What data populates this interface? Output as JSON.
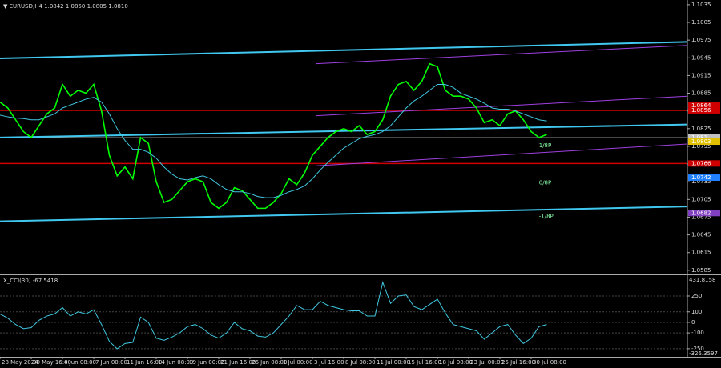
{
  "chart_data": [
    {
      "type": "line",
      "title": "▼ EURUSD,H4  1.0842 1.0850 1.0805 1.0810",
      "xlim": [
        0,
        88
      ],
      "ylim": [
        1.0578,
        1.1043
      ],
      "yticks": [
        1.1035,
        1.1005,
        1.0975,
        1.0945,
        1.0915,
        1.0885,
        1.0855,
        1.0825,
        1.0795,
        1.0765,
        1.0735,
        1.0705,
        1.0675,
        1.0645,
        1.0615,
        1.0585
      ],
      "xticks": [
        {
          "value": 0,
          "label": "28 May 2024"
        },
        {
          "value": 4,
          "label": "30 May 16:00"
        },
        {
          "value": 8,
          "label": "4 Jun 08:00"
        },
        {
          "value": 12,
          "label": "7 Jun 00:00"
        },
        {
          "value": 16,
          "label": "11 Jun 16:00"
        },
        {
          "value": 20,
          "label": "14 Jun 08:00"
        },
        {
          "value": 24,
          "label": "19 Jun 00:00"
        },
        {
          "value": 28,
          "label": "21 Jun 16:00"
        },
        {
          "value": 32,
          "label": "26 Jun 08:00"
        },
        {
          "value": 36,
          "label": "1 Jul 00:00"
        },
        {
          "value": 40,
          "label": "3 Jul 16:00"
        },
        {
          "value": 44,
          "label": "8 Jul 08:00"
        },
        {
          "value": 48,
          "label": "11 Jul 00:00"
        },
        {
          "value": 52,
          "label": "15 Jul 16:00"
        },
        {
          "value": 56,
          "label": "18 Jul 08:00"
        },
        {
          "value": 60,
          "label": "23 Jul 00:00"
        },
        {
          "value": 64,
          "label": "25 Jul 16:00"
        },
        {
          "value": 68,
          "label": "30 Jul 08:00"
        }
      ],
      "series": [
        {
          "name": "EURUSD",
          "color": "#00ff00",
          "values": [
            1.087,
            1.086,
            1.084,
            1.082,
            1.081,
            1.083,
            1.085,
            1.086,
            1.09,
            1.088,
            1.089,
            1.0885,
            1.09,
            1.0855,
            1.078,
            1.0745,
            1.076,
            1.074,
            1.081,
            1.08,
            1.0735,
            1.07,
            1.0705,
            1.072,
            1.0735,
            1.074,
            1.0735,
            1.07,
            1.069,
            1.07,
            1.0725,
            1.072,
            1.0705,
            1.069,
            1.069,
            1.07,
            1.0715,
            1.074,
            1.073,
            1.075,
            1.078,
            1.0795,
            1.081,
            1.082,
            1.0825,
            1.082,
            1.083,
            1.0815,
            1.082,
            1.084,
            1.088,
            1.09,
            1.0905,
            1.089,
            1.0905,
            1.0935,
            1.093,
            1.089,
            1.088,
            1.088,
            1.0875,
            1.086,
            1.0835,
            1.084,
            1.083,
            1.085,
            1.0855,
            1.084,
            1.082,
            1.081,
            1.0815
          ]
        },
        {
          "color": "#40c8e0",
          "values": [
            1.0848,
            1.0845,
            1.0843,
            1.0842,
            1.084,
            1.084,
            1.0845,
            1.085,
            1.086,
            1.0865,
            1.087,
            1.0875,
            1.0878,
            1.087,
            1.085,
            1.0825,
            1.0805,
            1.079,
            1.079,
            1.0785,
            1.0775,
            1.076,
            1.0748,
            1.074,
            1.0738,
            1.0742,
            1.0745,
            1.074,
            1.073,
            1.0722,
            1.0718,
            1.0718,
            1.0715,
            1.071,
            1.0708,
            1.0708,
            1.0712,
            1.0718,
            1.0722,
            1.0728,
            1.074,
            1.0755,
            1.0768,
            1.078,
            1.0792,
            1.08,
            1.0808,
            1.0812,
            1.0815,
            1.082,
            1.083,
            1.0845,
            1.086,
            1.0872,
            1.088,
            1.089,
            1.09,
            1.09,
            1.0895,
            1.0885,
            1.088,
            1.0875,
            1.0868,
            1.086,
            1.0858,
            1.0858,
            1.0855,
            1.085,
            1.0845,
            1.084,
            1.0838
          ]
        }
      ],
      "levels": [
        {
          "value": 1.0864,
          "color": "#d00000",
          "line": false
        },
        {
          "value": 1.0856,
          "color": "#d00000",
          "line": true
        },
        {
          "value": 1.081,
          "color": "#c0c0c0",
          "line": true
        },
        {
          "value": 1.0803,
          "color": "#e0c000",
          "line": false
        },
        {
          "value": 1.0766,
          "color": "#d00000",
          "line": true
        },
        {
          "value": 1.0742,
          "color": "#2080ff",
          "line": false
        },
        {
          "value": 1.0682,
          "color": "#8040c0",
          "line": false
        }
      ],
      "channels": [
        {
          "color": "#40c8f0",
          "width": 2,
          "x": [
            0,
            88
          ],
          "values": [
            1.0944,
            1.0972
          ]
        },
        {
          "color": "#40c8f0",
          "width": 2,
          "x": [
            0,
            88
          ],
          "values": [
            1.081,
            1.0832
          ]
        },
        {
          "color": "#40c8f0",
          "width": 2,
          "x": [
            0,
            88
          ],
          "values": [
            1.0668,
            1.0693
          ]
        },
        {
          "color": "#a040e0",
          "width": 1,
          "x": [
            40.5,
            88
          ],
          "values": [
            1.0935,
            1.0966
          ]
        },
        {
          "color": "#a040e0",
          "width": 1,
          "x": [
            40.5,
            88
          ],
          "values": [
            1.0847,
            1.088
          ]
        },
        {
          "color": "#a040e0",
          "width": 1,
          "x": [
            40.5,
            88
          ],
          "values": [
            1.0762,
            1.0799
          ]
        }
      ],
      "annotations": [
        {
          "text": "1/8P",
          "x": 69,
          "y": 1.0796
        },
        {
          "text": "0/8P",
          "x": 69,
          "y": 1.0733
        },
        {
          "text": "-1/8P",
          "x": 69,
          "y": 1.0676
        }
      ]
    },
    {
      "type": "line",
      "title": "X_CCI(30) -67.5418",
      "xlim": [
        0,
        88
      ],
      "ylim": [
        -326.3597,
        431.8158
      ],
      "yticks": [
        250,
        100,
        0,
        -100,
        -250
      ],
      "series": [
        {
          "color": "#40c8e0",
          "values": [
            80,
            40,
            -20,
            -60,
            -50,
            20,
            60,
            80,
            140,
            60,
            100,
            80,
            120,
            -20,
            -180,
            -250,
            -200,
            -190,
            50,
            0,
            -150,
            -170,
            -140,
            -100,
            -40,
            -20,
            -60,
            -120,
            -150,
            -100,
            0,
            -60,
            -80,
            -130,
            -140,
            -100,
            -20,
            60,
            160,
            120,
            120,
            200,
            160,
            140,
            120,
            110,
            110,
            60,
            60,
            380,
            180,
            250,
            260,
            150,
            120,
            170,
            220,
            90,
            -20,
            -40,
            -60,
            -80,
            -160,
            -100,
            -40,
            -20,
            -120,
            -200,
            -150,
            -40,
            -20
          ]
        }
      ]
    }
  ]
}
